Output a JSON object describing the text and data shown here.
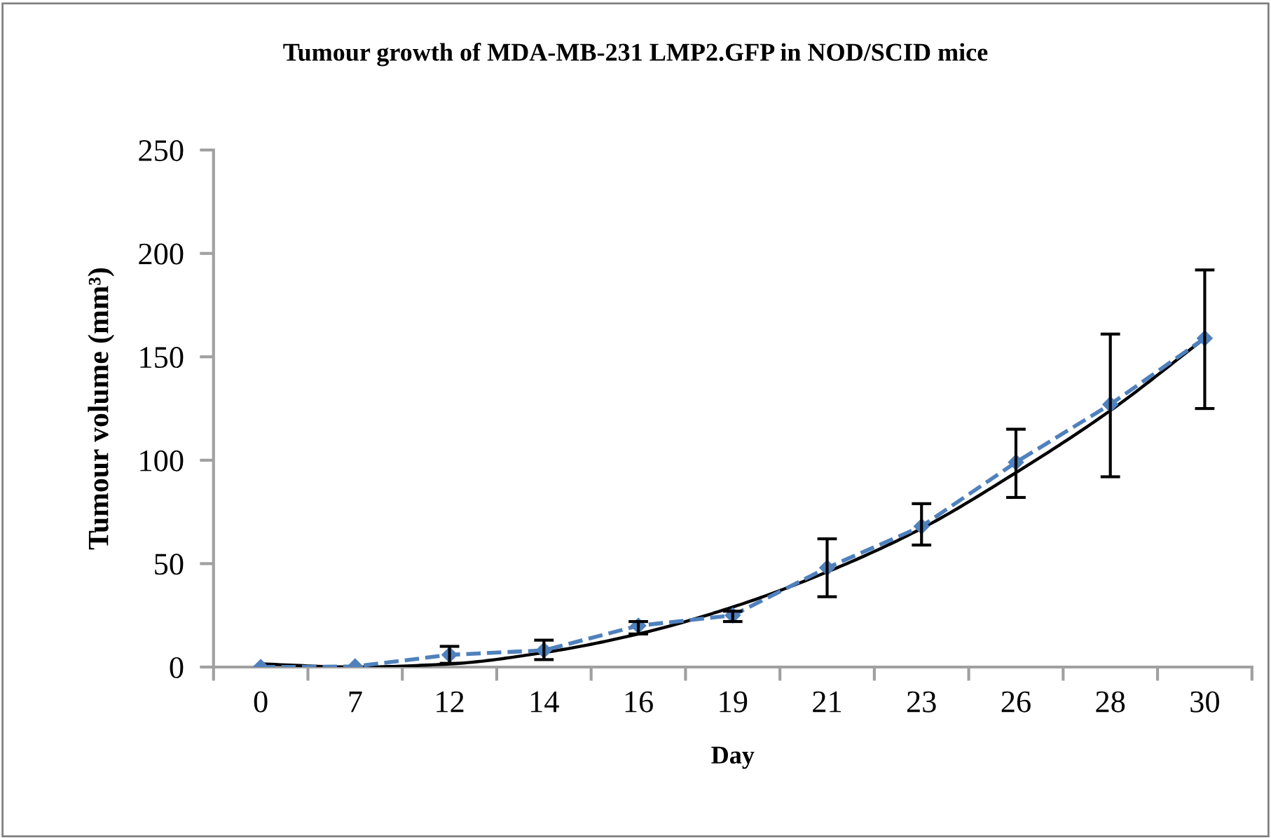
{
  "chart_data": {
    "type": "line",
    "title": "Tumour growth of MDA-MB-231 LMP2.GFP in NOD/SCID mice",
    "xlabel": "Day",
    "ylabel": "Tumour volume (mm³)",
    "categories": [
      "0",
      "7",
      "12",
      "14",
      "16",
      "19",
      "21",
      "23",
      "26",
      "28",
      "30"
    ],
    "series": [
      {
        "color": "#4f81bd",
        "line_style": "dashed",
        "marker": "diamond",
        "values": [
          0,
          0.3,
          5.9,
          8.1,
          20,
          25,
          48,
          68,
          99,
          127,
          159
        ],
        "errors": [
          null,
          null,
          [
            1.8,
            10
          ],
          [
            3.6,
            13
          ],
          [
            16,
            22
          ],
          [
            22,
            27
          ],
          [
            34,
            62
          ],
          [
            59,
            79
          ],
          [
            82,
            115
          ],
          [
            92,
            161
          ],
          [
            125,
            192
          ]
        ]
      },
      {
        "color": "#000000",
        "line_style": "solid",
        "marker": "none",
        "values": [
          1.5,
          0,
          1.5,
          7,
          16,
          29,
          46,
          67,
          94,
          124,
          159
        ]
      }
    ],
    "ylim": [
      0,
      250
    ],
    "yticks": [
      0,
      50,
      100,
      150,
      200,
      250
    ],
    "grid": false,
    "legend": false
  }
}
